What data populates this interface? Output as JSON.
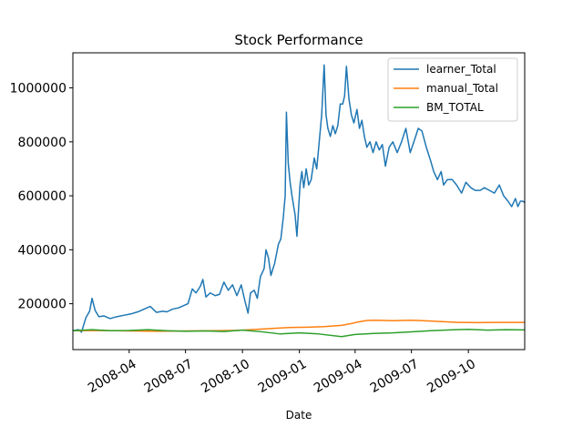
{
  "chart_data": {
    "type": "line",
    "title": "Stock Performance",
    "xlabel": "Date",
    "ylabel": "",
    "xlim": [
      "2008-01-01",
      "2009-12-31"
    ],
    "ylim": [
      30000,
      1130000
    ],
    "x_ticks": [
      "2008-04",
      "2008-07",
      "2008-10",
      "2009-01",
      "2009-04",
      "2009-07",
      "2009-10"
    ],
    "y_ticks": [
      200000,
      400000,
      600000,
      800000,
      1000000
    ],
    "legend": "top-right",
    "grid": false,
    "series": [
      {
        "name": "learner_Total",
        "color": "#1f77b4",
        "points": [
          [
            "2008-01-01",
            100000
          ],
          [
            "2008-01-10",
            104000
          ],
          [
            "2008-01-15",
            95000
          ],
          [
            "2008-01-22",
            148000
          ],
          [
            "2008-01-28",
            172000
          ],
          [
            "2008-02-01",
            220000
          ],
          [
            "2008-02-06",
            175000
          ],
          [
            "2008-02-12",
            152000
          ],
          [
            "2008-02-20",
            155000
          ],
          [
            "2008-03-01",
            145000
          ],
          [
            "2008-03-12",
            152000
          ],
          [
            "2008-03-25",
            158000
          ],
          [
            "2008-04-05",
            163000
          ],
          [
            "2008-04-15",
            170000
          ],
          [
            "2008-04-25",
            180000
          ],
          [
            "2008-05-05",
            190000
          ],
          [
            "2008-05-15",
            168000
          ],
          [
            "2008-05-25",
            172000
          ],
          [
            "2008-06-01",
            170000
          ],
          [
            "2008-06-10",
            180000
          ],
          [
            "2008-06-20",
            185000
          ],
          [
            "2008-06-30",
            195000
          ],
          [
            "2008-07-05",
            200000
          ],
          [
            "2008-07-12",
            255000
          ],
          [
            "2008-07-18",
            240000
          ],
          [
            "2008-07-25",
            265000
          ],
          [
            "2008-07-29",
            290000
          ],
          [
            "2008-08-03",
            225000
          ],
          [
            "2008-08-10",
            240000
          ],
          [
            "2008-08-18",
            230000
          ],
          [
            "2008-08-25",
            235000
          ],
          [
            "2008-09-01",
            280000
          ],
          [
            "2008-09-08",
            250000
          ],
          [
            "2008-09-15",
            270000
          ],
          [
            "2008-09-22",
            230000
          ],
          [
            "2008-09-29",
            270000
          ],
          [
            "2008-10-05",
            210000
          ],
          [
            "2008-10-10",
            165000
          ],
          [
            "2008-10-14",
            240000
          ],
          [
            "2008-10-20",
            250000
          ],
          [
            "2008-10-25",
            220000
          ],
          [
            "2008-10-30",
            300000
          ],
          [
            "2008-11-05",
            330000
          ],
          [
            "2008-11-08",
            400000
          ],
          [
            "2008-11-12",
            370000
          ],
          [
            "2008-11-16",
            305000
          ],
          [
            "2008-11-22",
            350000
          ],
          [
            "2008-11-28",
            420000
          ],
          [
            "2008-12-02",
            440000
          ],
          [
            "2008-12-06",
            520000
          ],
          [
            "2008-12-09",
            600000
          ],
          [
            "2008-12-11",
            910000
          ],
          [
            "2008-12-14",
            720000
          ],
          [
            "2008-12-17",
            650000
          ],
          [
            "2008-12-20",
            600000
          ],
          [
            "2008-12-25",
            530000
          ],
          [
            "2008-12-28",
            450000
          ],
          [
            "2009-01-02",
            640000
          ],
          [
            "2009-01-05",
            690000
          ],
          [
            "2009-01-08",
            630000
          ],
          [
            "2009-01-12",
            700000
          ],
          [
            "2009-01-16",
            640000
          ],
          [
            "2009-01-20",
            660000
          ],
          [
            "2009-01-25",
            740000
          ],
          [
            "2009-01-29",
            700000
          ],
          [
            "2009-02-02",
            800000
          ],
          [
            "2009-02-06",
            900000
          ],
          [
            "2009-02-10",
            1085000
          ],
          [
            "2009-02-13",
            900000
          ],
          [
            "2009-02-16",
            850000
          ],
          [
            "2009-02-20",
            820000
          ],
          [
            "2009-02-24",
            860000
          ],
          [
            "2009-02-28",
            830000
          ],
          [
            "2009-03-04",
            860000
          ],
          [
            "2009-03-08",
            940000
          ],
          [
            "2009-03-12",
            940000
          ],
          [
            "2009-03-15",
            970000
          ],
          [
            "2009-03-18",
            1080000
          ],
          [
            "2009-03-22",
            960000
          ],
          [
            "2009-03-26",
            900000
          ],
          [
            "2009-03-30",
            870000
          ],
          [
            "2009-04-04",
            920000
          ],
          [
            "2009-04-08",
            850000
          ],
          [
            "2009-04-12",
            880000
          ],
          [
            "2009-04-16",
            820000
          ],
          [
            "2009-04-20",
            780000
          ],
          [
            "2009-04-25",
            800000
          ],
          [
            "2009-04-30",
            760000
          ],
          [
            "2009-05-05",
            800000
          ],
          [
            "2009-05-10",
            770000
          ],
          [
            "2009-05-15",
            790000
          ],
          [
            "2009-05-20",
            710000
          ],
          [
            "2009-05-26",
            780000
          ],
          [
            "2009-06-01",
            800000
          ],
          [
            "2009-06-08",
            760000
          ],
          [
            "2009-06-15",
            800000
          ],
          [
            "2009-06-22",
            850000
          ],
          [
            "2009-06-29",
            760000
          ],
          [
            "2009-07-05",
            800000
          ],
          [
            "2009-07-12",
            850000
          ],
          [
            "2009-07-18",
            840000
          ],
          [
            "2009-07-25",
            780000
          ],
          [
            "2009-08-01",
            730000
          ],
          [
            "2009-08-06",
            690000
          ],
          [
            "2009-08-12",
            660000
          ],
          [
            "2009-08-18",
            690000
          ],
          [
            "2009-08-22",
            640000
          ],
          [
            "2009-08-28",
            660000
          ],
          [
            "2009-09-05",
            660000
          ],
          [
            "2009-09-12",
            640000
          ],
          [
            "2009-09-20",
            610000
          ],
          [
            "2009-09-27",
            650000
          ],
          [
            "2009-10-05",
            630000
          ],
          [
            "2009-10-12",
            620000
          ],
          [
            "2009-10-20",
            620000
          ],
          [
            "2009-10-27",
            630000
          ],
          [
            "2009-11-04",
            620000
          ],
          [
            "2009-11-12",
            610000
          ],
          [
            "2009-11-20",
            640000
          ],
          [
            "2009-11-27",
            600000
          ],
          [
            "2009-12-04",
            580000
          ],
          [
            "2009-12-10",
            560000
          ],
          [
            "2009-12-16",
            590000
          ],
          [
            "2009-12-20",
            560000
          ],
          [
            "2009-12-24",
            580000
          ],
          [
            "2009-12-28",
            580000
          ],
          [
            "2009-12-31",
            575000
          ]
        ]
      },
      {
        "name": "manual_Total",
        "color": "#ff7f0e",
        "points": [
          [
            "2008-01-01",
            100000
          ],
          [
            "2008-02-15",
            101000
          ],
          [
            "2008-04-01",
            99000
          ],
          [
            "2008-05-15",
            98000
          ],
          [
            "2008-07-01",
            99000
          ],
          [
            "2008-08-15",
            100000
          ],
          [
            "2008-09-20",
            101000
          ],
          [
            "2008-10-15",
            104000
          ],
          [
            "2008-11-15",
            108000
          ],
          [
            "2008-12-15",
            112000
          ],
          [
            "2009-01-15",
            113000
          ],
          [
            "2009-02-10",
            115000
          ],
          [
            "2009-03-10",
            120000
          ],
          [
            "2009-03-25",
            126000
          ],
          [
            "2009-04-05",
            132000
          ],
          [
            "2009-04-20",
            138000
          ],
          [
            "2009-05-05",
            139000
          ],
          [
            "2009-06-01",
            137000
          ],
          [
            "2009-07-01",
            139000
          ],
          [
            "2009-07-20",
            137000
          ],
          [
            "2009-08-15",
            134000
          ],
          [
            "2009-09-15",
            131000
          ],
          [
            "2009-10-15",
            130000
          ],
          [
            "2009-11-15",
            131000
          ],
          [
            "2009-12-31",
            131000
          ]
        ]
      },
      {
        "name": "BM_TOTAL",
        "color": "#2ca02c",
        "points": [
          [
            "2008-01-01",
            100000
          ],
          [
            "2008-02-01",
            104000
          ],
          [
            "2008-03-01",
            100000
          ],
          [
            "2008-04-01",
            101000
          ],
          [
            "2008-05-01",
            104000
          ],
          [
            "2008-06-01",
            100000
          ],
          [
            "2008-07-01",
            98000
          ],
          [
            "2008-08-01",
            99000
          ],
          [
            "2008-09-01",
            97000
          ],
          [
            "2008-10-01",
            102000
          ],
          [
            "2008-11-01",
            96000
          ],
          [
            "2008-12-01",
            88000
          ],
          [
            "2009-01-01",
            92000
          ],
          [
            "2009-02-01",
            88000
          ],
          [
            "2009-03-10",
            78000
          ],
          [
            "2009-04-01",
            86000
          ],
          [
            "2009-05-01",
            90000
          ],
          [
            "2009-06-01",
            92000
          ],
          [
            "2009-07-01",
            96000
          ],
          [
            "2009-08-01",
            100000
          ],
          [
            "2009-09-01",
            103000
          ],
          [
            "2009-10-01",
            105000
          ],
          [
            "2009-11-01",
            102000
          ],
          [
            "2009-12-01",
            104000
          ],
          [
            "2009-12-31",
            103000
          ]
        ]
      }
    ]
  }
}
